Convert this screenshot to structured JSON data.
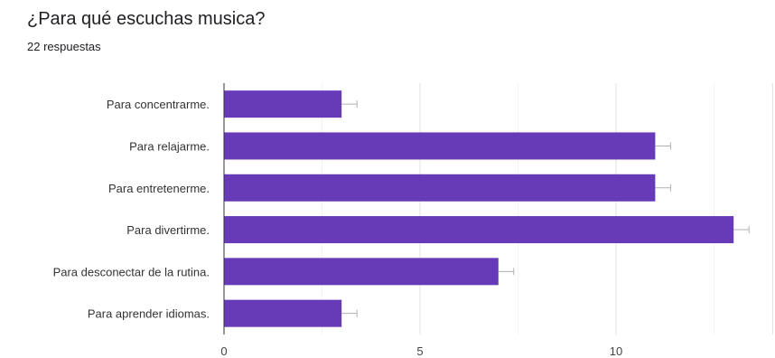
{
  "header": {
    "title": "¿Para qué escuchas musica?",
    "subtitle": "22 respuestas"
  },
  "chart_data": {
    "type": "bar",
    "orientation": "horizontal",
    "title": "¿Para qué escuchas musica?",
    "xlabel": "",
    "ylabel": "",
    "categories": [
      "Para concentrarme.",
      "Para relajarme.",
      "Para entretenerme.",
      "Para divertirme.",
      "Para desconectar de la rutina.",
      "Para aprender idiomas."
    ],
    "values": [
      3,
      11,
      11,
      13,
      7,
      3
    ],
    "xlim": [
      0,
      14
    ],
    "xticks": [
      0,
      5,
      10
    ],
    "grid": true,
    "legend": "none",
    "bar_color": "#673ab7",
    "error_bar_color": "#b0b0b0"
  }
}
